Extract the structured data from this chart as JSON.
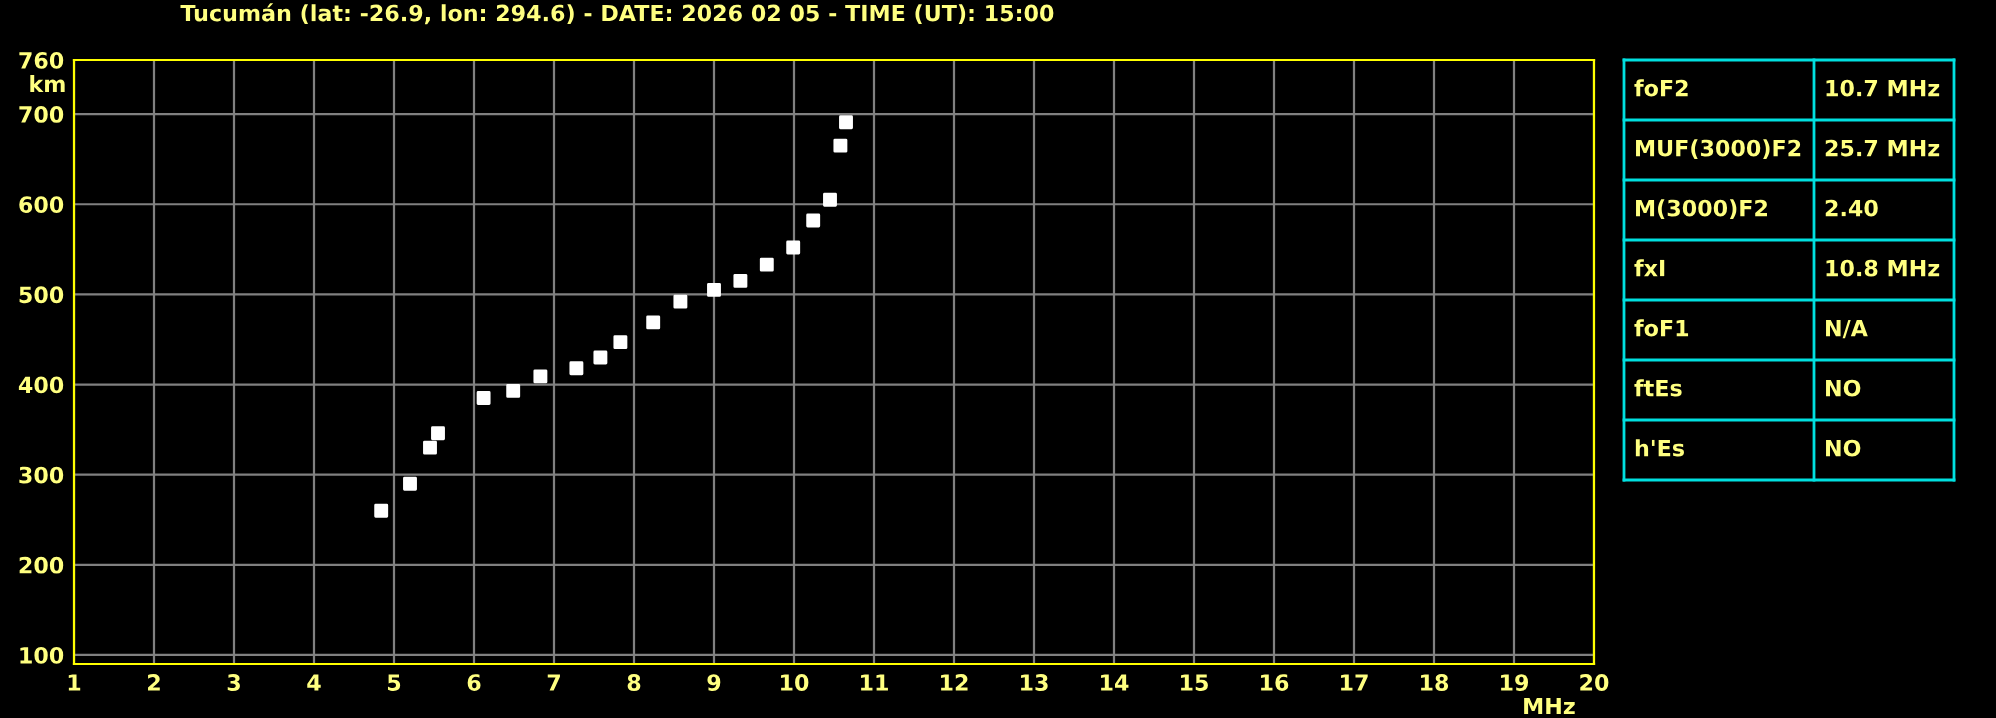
{
  "chart_data": {
    "type": "scatter",
    "title": "Tucumán (lat: -26.9, lon: 294.6) - DATE: 2026 02 05 - TIME (UT): 15:00",
    "xlabel": "MHz",
    "ylabel": "km",
    "series": [
      {
        "color": "#ffffff",
        "x": [
          4.84,
          5.2,
          5.45,
          5.55,
          6.12,
          6.49,
          6.83,
          7.28,
          7.58,
          7.83,
          8.24,
          8.58,
          9.0,
          9.33,
          9.66,
          9.99,
          10.24,
          10.45,
          10.58,
          10.65
        ],
        "values": [
          260,
          290,
          330,
          346,
          385,
          393,
          409,
          418,
          430,
          447,
          469,
          492,
          505,
          515,
          533,
          552,
          582,
          605,
          665,
          691
        ]
      }
    ],
    "marker": "square",
    "xlim": [
      1,
      20
    ],
    "ylim": [
      90,
      760
    ],
    "xticks": [
      1,
      2,
      3,
      4,
      5,
      6,
      7,
      8,
      9,
      10,
      11,
      12,
      13,
      14,
      15,
      16,
      17,
      18,
      19,
      20
    ],
    "yticks": [
      100,
      200,
      300,
      400,
      500,
      600,
      700,
      760
    ],
    "grid": true,
    "legend": false,
    "annotations": [
      "foF2",
      "10.7 MHz",
      "MUF(3000)F2",
      "25.7 MHz",
      "M(3000)F2",
      "2.40",
      "fxI",
      "10.8 MHz",
      "foF1",
      "N/A",
      "ftEs",
      "NO",
      "h'Es",
      "NO"
    ]
  }
}
